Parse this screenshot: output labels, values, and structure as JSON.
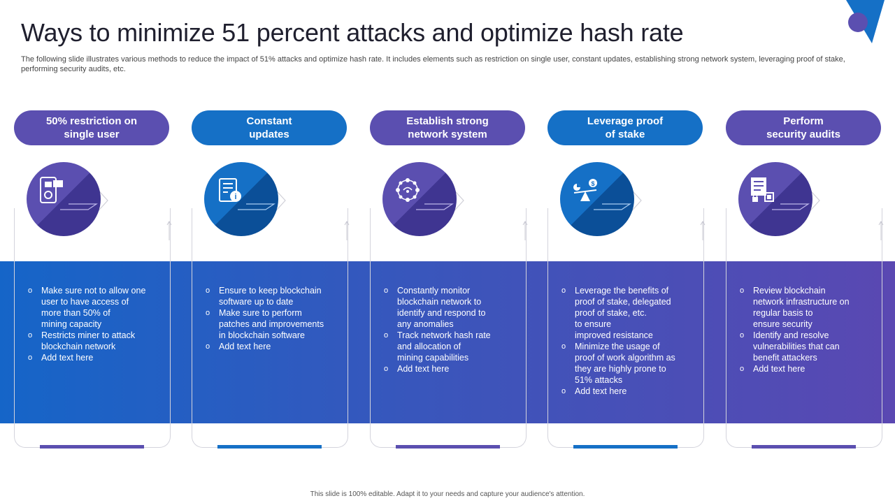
{
  "title": "Ways to minimize 51 percent attacks and optimize hash rate",
  "subtitle": "The following slide illustrates various methods to reduce the impact of 51% attacks and optimize hash rate. It includes elements such as restriction on single user, constant updates, establishing strong network system, leveraging proof of stake, performing security audits, etc.",
  "footer": "This slide is 100% editable. Adapt it to your needs and capture your audience's attention.",
  "colors": {
    "purple": "#5b4fb0",
    "blue": "#1570c6",
    "purple_dark": "#3f3591",
    "blue_dark": "#0b4f98"
  },
  "columns": [
    {
      "heading": "50% restriction on\nsingle user",
      "icon": "id-card-user-icon",
      "bullets": [
        "Make sure not to allow one\nuser to have access of\nmore than 50% of\nmining capacity",
        "Restricts miner to attack\nblockchain network",
        "Add text here"
      ]
    },
    {
      "heading": "Constant\nupdates",
      "icon": "document-info-icon",
      "bullets": [
        "Ensure to keep blockchain\nsoftware up to date",
        "Make sure to perform\npatches and improvements\nin blockchain software",
        "Add text here"
      ]
    },
    {
      "heading": "Establish strong\nnetwork system",
      "icon": "network-hub-icon",
      "bullets": [
        "Constantly monitor\nblockchain network to\nidentify and respond to\nany anomalies",
        "Track network hash rate\nand allocation of\nmining capabilities",
        "Add text here"
      ]
    },
    {
      "heading": "Leverage proof\nof stake",
      "icon": "balance-scale-icon",
      "bullets": [
        "Leverage the benefits of\nproof of stake, delegated\nproof of stake, etc.\nto ensure\nimproved resistance",
        "Minimize the usage of\nproof of work algorithm as\nthey are highly prone to\n51% attacks",
        "Add text here"
      ]
    },
    {
      "heading": "Perform\nsecurity audits",
      "icon": "security-audit-icon",
      "bullets": [
        "Review blockchain\nnetwork infrastructure on\nregular basis to\nensure security",
        "Identify and resolve\nvulnerabilities that can\nbenefit attackers",
        "Add text here"
      ]
    }
  ]
}
